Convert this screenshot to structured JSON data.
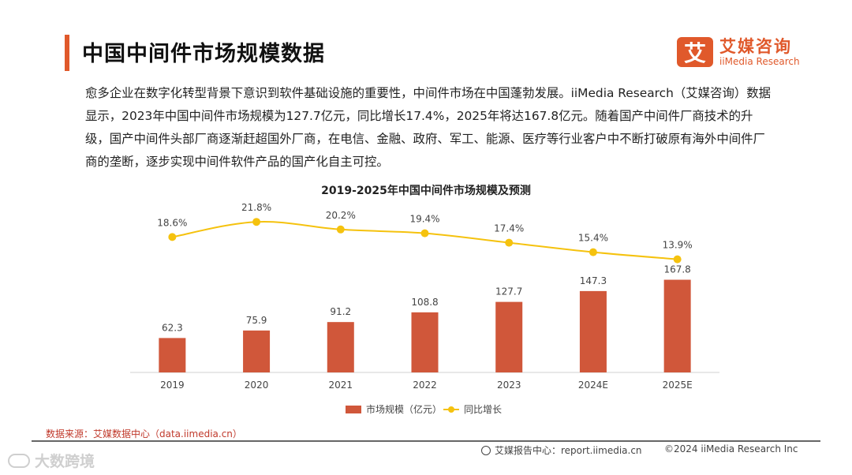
{
  "page": {
    "title": "中国中间件市场规模数据",
    "intro": "愈多企业在数字化转型背景下意识到软件基础设施的重要性，中间件市场在中国蓬勃发展。iiMedia Research（艾媒咨询）数据显示，2023年中国中间件市场规模为127.7亿元，同比增长17.4%，2025年将达167.8亿元。随着国产中间件厂商技术的升级，国产中间件头部厂商逐渐赶超国外厂商，在电信、金融、政府、军工、能源、医疗等行业客户中不断打破原有海外中间件厂商的垄断，逐步实现中间件软件产品的国产化自主可控。"
  },
  "logo": {
    "mark": "艾",
    "cn": "艾媒咨询",
    "en": "iiMedia Research"
  },
  "colors": {
    "accent": "#e0592b",
    "bar": "#d0573a",
    "line": "#f5c20e"
  },
  "chart_data": {
    "type": "bar",
    "title": "2019-2025年中国中间件市场规模及预测",
    "categories": [
      "2019",
      "2020",
      "2021",
      "2022",
      "2023",
      "2024E",
      "2025E"
    ],
    "series": [
      {
        "name": "市场规模（亿元）",
        "type": "bar",
        "values": [
          62.3,
          75.9,
          91.2,
          108.8,
          127.7,
          147.3,
          167.8
        ],
        "labels": [
          "62.3",
          "75.9",
          "91.2",
          "108.8",
          "127.7",
          "147.3",
          "167.8"
        ]
      },
      {
        "name": "同比增长",
        "type": "line",
        "values": [
          18.6,
          21.8,
          20.2,
          19.4,
          17.4,
          15.4,
          13.9
        ],
        "labels": [
          "18.6%",
          "21.8%",
          "20.2%",
          "19.4%",
          "17.4%",
          "15.4%",
          "13.9%"
        ]
      }
    ],
    "ylim_bar": [
      0,
      300
    ],
    "ylim_line": [
      -10,
      25
    ],
    "legend_position": "bottom"
  },
  "footer": {
    "source": "数据来源：艾媒数据中心（data.iimedia.cn）",
    "center": "艾媒报告中心：report.iimedia.cn",
    "copyright": "©2024  iiMedia Research  Inc",
    "watermark": "大数跨境"
  }
}
